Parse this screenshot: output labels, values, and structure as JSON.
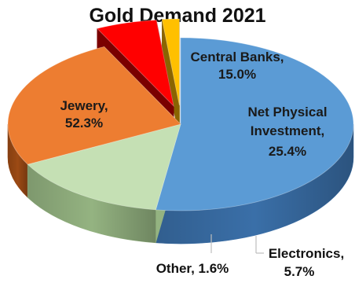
{
  "chart_data": {
    "type": "pie",
    "title": "Gold Demand 2021",
    "slices": [
      {
        "label": "Jewery",
        "value": 52.3,
        "display": "52.3%",
        "color": "#5b9bd5",
        "side_color": "#3a6fa8",
        "exploded": false
      },
      {
        "label": "Central Banks",
        "value": 15.0,
        "display": "15.0%",
        "color": "#c5e0b4",
        "side_color": "#94b381",
        "exploded": false
      },
      {
        "label": "Net Physical Investment",
        "value": 25.4,
        "display": "25.4%",
        "color": "#ed7d31",
        "side_color": "#9c4a14",
        "exploded": false
      },
      {
        "label": "Electronics",
        "value": 5.7,
        "display": "5.7%",
        "color": "#ff0000",
        "side_color": "#7a0000",
        "exploded": true
      },
      {
        "label": "Other",
        "value": 1.6,
        "display": "1.6%",
        "color": "#ffc000",
        "side_color": "#8a6400",
        "exploded": true
      }
    ],
    "label_text": {
      "jewery_line1": "Jewery,",
      "jewery_line2": "52.3%",
      "central_line1": "Central Banks,",
      "central_line2": "15.0%",
      "npi_line1": "Net Physical",
      "npi_line2": "Investment,",
      "npi_line3": "25.4%",
      "electronics_line1": "Electronics,",
      "electronics_line2": "5.7%",
      "other_line1": "Other, 1.6%"
    },
    "legend": "none",
    "style": "3d-exploded"
  }
}
